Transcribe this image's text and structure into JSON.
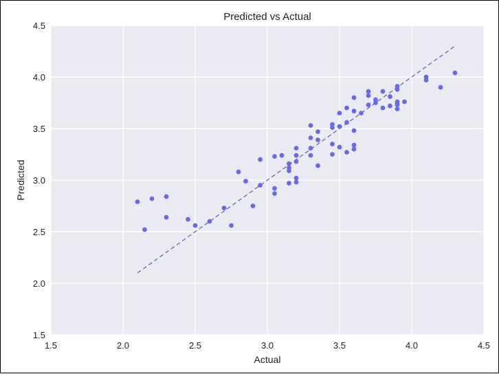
{
  "chart_data": {
    "type": "scatter",
    "title": "Predicted vs Actual",
    "xlabel": "Actual",
    "ylabel": "Predicted",
    "xlim": [
      1.5,
      4.5
    ],
    "ylim": [
      1.5,
      4.5
    ],
    "x_ticks": [
      "1.5",
      "2.0",
      "2.5",
      "3.0",
      "3.5",
      "4.0",
      "4.5"
    ],
    "y_ticks": [
      "1.5",
      "2.0",
      "2.5",
      "3.0",
      "3.5",
      "4.0",
      "4.5"
    ],
    "grid": true,
    "reference_line": {
      "style": "dashed",
      "x": [
        2.1,
        4.3
      ],
      "y": [
        2.1,
        4.3
      ]
    },
    "colors": {
      "background": "#EAEAF2",
      "grid": "#FFFFFF",
      "points": "#6A6AE0",
      "line": "#5B5BB0"
    },
    "points": [
      {
        "x": 2.1,
        "y": 2.79
      },
      {
        "x": 2.15,
        "y": 2.52
      },
      {
        "x": 2.2,
        "y": 2.82
      },
      {
        "x": 2.3,
        "y": 2.84
      },
      {
        "x": 2.3,
        "y": 2.64
      },
      {
        "x": 2.45,
        "y": 2.62
      },
      {
        "x": 2.5,
        "y": 2.56
      },
      {
        "x": 2.6,
        "y": 2.6
      },
      {
        "x": 2.7,
        "y": 2.73
      },
      {
        "x": 2.75,
        "y": 2.56
      },
      {
        "x": 2.8,
        "y": 3.08
      },
      {
        "x": 2.85,
        "y": 2.99
      },
      {
        "x": 2.9,
        "y": 2.75
      },
      {
        "x": 2.95,
        "y": 3.2
      },
      {
        "x": 2.95,
        "y": 2.95
      },
      {
        "x": 3.05,
        "y": 3.23
      },
      {
        "x": 3.05,
        "y": 2.92
      },
      {
        "x": 3.05,
        "y": 2.87
      },
      {
        "x": 3.1,
        "y": 3.24
      },
      {
        "x": 3.15,
        "y": 3.16
      },
      {
        "x": 3.15,
        "y": 3.12
      },
      {
        "x": 3.15,
        "y": 3.09
      },
      {
        "x": 3.15,
        "y": 2.97
      },
      {
        "x": 3.2,
        "y": 3.31
      },
      {
        "x": 3.2,
        "y": 3.24
      },
      {
        "x": 3.2,
        "y": 3.18
      },
      {
        "x": 3.2,
        "y": 3.02
      },
      {
        "x": 3.2,
        "y": 2.98
      },
      {
        "x": 3.3,
        "y": 3.53
      },
      {
        "x": 3.3,
        "y": 3.41
      },
      {
        "x": 3.3,
        "y": 3.31
      },
      {
        "x": 3.3,
        "y": 3.24
      },
      {
        "x": 3.35,
        "y": 3.47
      },
      {
        "x": 3.35,
        "y": 3.39
      },
      {
        "x": 3.35,
        "y": 3.14
      },
      {
        "x": 3.45,
        "y": 3.54
      },
      {
        "x": 3.45,
        "y": 3.51
      },
      {
        "x": 3.45,
        "y": 3.35
      },
      {
        "x": 3.45,
        "y": 3.25
      },
      {
        "x": 3.5,
        "y": 3.65
      },
      {
        "x": 3.5,
        "y": 3.52
      },
      {
        "x": 3.5,
        "y": 3.32
      },
      {
        "x": 3.55,
        "y": 3.7
      },
      {
        "x": 3.55,
        "y": 3.56
      },
      {
        "x": 3.55,
        "y": 3.27
      },
      {
        "x": 3.6,
        "y": 3.8
      },
      {
        "x": 3.6,
        "y": 3.67
      },
      {
        "x": 3.6,
        "y": 3.48
      },
      {
        "x": 3.6,
        "y": 3.34
      },
      {
        "x": 3.6,
        "y": 3.3
      },
      {
        "x": 3.65,
        "y": 3.65
      },
      {
        "x": 3.7,
        "y": 3.86
      },
      {
        "x": 3.7,
        "y": 3.82
      },
      {
        "x": 3.7,
        "y": 3.73
      },
      {
        "x": 3.75,
        "y": 3.78
      },
      {
        "x": 3.75,
        "y": 3.75
      },
      {
        "x": 3.8,
        "y": 3.86
      },
      {
        "x": 3.8,
        "y": 3.7
      },
      {
        "x": 3.85,
        "y": 3.81
      },
      {
        "x": 3.85,
        "y": 3.72
      },
      {
        "x": 3.9,
        "y": 3.91
      },
      {
        "x": 3.9,
        "y": 3.88
      },
      {
        "x": 3.9,
        "y": 3.76
      },
      {
        "x": 3.9,
        "y": 3.74
      },
      {
        "x": 3.9,
        "y": 3.73
      },
      {
        "x": 3.9,
        "y": 3.69
      },
      {
        "x": 3.95,
        "y": 3.76
      },
      {
        "x": 4.1,
        "y": 4.0
      },
      {
        "x": 4.1,
        "y": 3.97
      },
      {
        "x": 4.2,
        "y": 3.9
      },
      {
        "x": 4.3,
        "y": 4.04
      }
    ]
  }
}
